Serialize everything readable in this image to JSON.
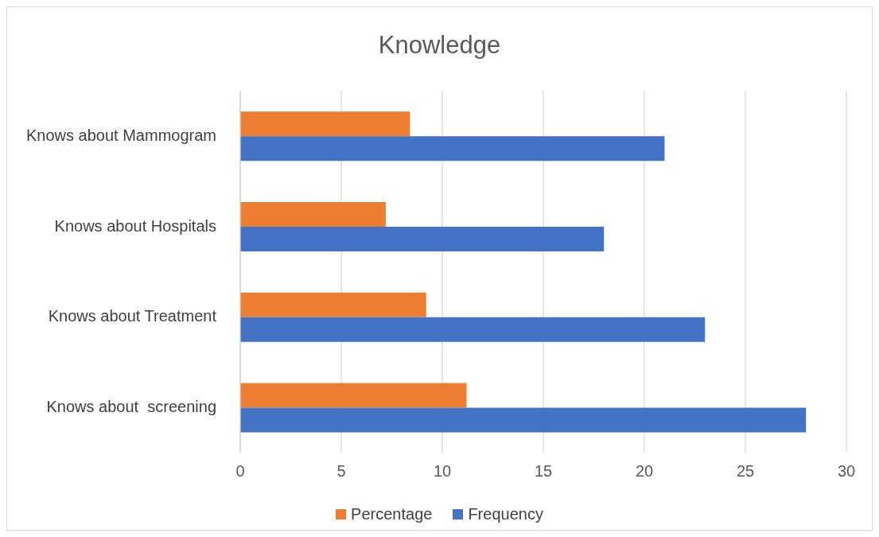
{
  "chart_data": {
    "type": "bar",
    "orientation": "horizontal",
    "title": "Knowledge",
    "categories": [
      "Knows about Mammogram",
      "Knows about Hospitals",
      "Knows about Treatment",
      "Knows about  screening"
    ],
    "series": [
      {
        "name": "Percentage",
        "color": "#ed7d31",
        "values": [
          8.4,
          7.2,
          9.2,
          11.2
        ]
      },
      {
        "name": "Frequency",
        "color": "#4472c4",
        "values": [
          21,
          18,
          23,
          28
        ]
      }
    ],
    "xlim": [
      0,
      30
    ],
    "xticks": [
      0,
      5,
      10,
      15,
      20,
      25,
      30
    ],
    "grid": "x",
    "legend": "bottom"
  }
}
